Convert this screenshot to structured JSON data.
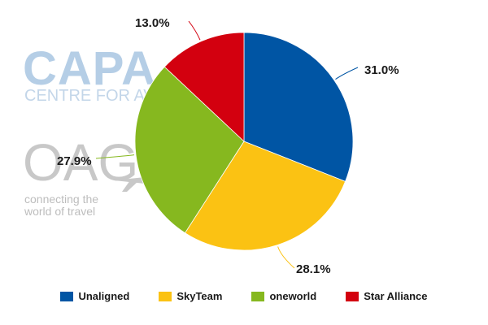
{
  "watermarks": {
    "capa": "CAPA",
    "capa_sub": "CENTRE FOR AVIATION",
    "oag": "OAG",
    "oag_sub_line1": "connecting the",
    "oag_sub_line2": "world of travel"
  },
  "chart_data": {
    "type": "pie",
    "title": "",
    "legend_position": "bottom",
    "slices": [
      {
        "name": "Unaligned",
        "value": 31.0,
        "label": "31.0%",
        "color": "#0055a4"
      },
      {
        "name": "SkyTeam",
        "value": 28.1,
        "label": "28.1%",
        "color": "#fbc213"
      },
      {
        "name": "oneworld",
        "value": 27.9,
        "label": "27.9%",
        "color": "#86b81f"
      },
      {
        "name": "Star Alliance",
        "value": 13.0,
        "label": "13.0%",
        "color": "#d3000f"
      }
    ]
  }
}
